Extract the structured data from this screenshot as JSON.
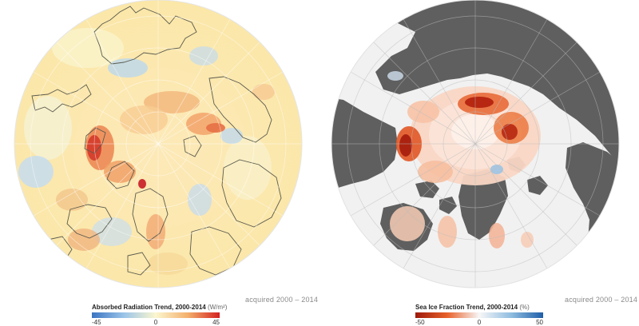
{
  "maps": [
    {
      "legend": {
        "title": "Absorbed Radiation Trend, 2000-2014",
        "unit": "(W/m²)",
        "min": "-45",
        "mid": "0",
        "max": "45",
        "colors": [
          "#3b74c2",
          "#9ac4e8",
          "#fbf7cf",
          "#f4b06c",
          "#d42020"
        ]
      },
      "acquired": "acquired 2000 – 2014"
    },
    {
      "legend": {
        "title": "Sea Ice Fraction Trend, 2000-2014",
        "unit": "(%)",
        "min": "-50",
        "mid": "0",
        "max": "50",
        "colors": [
          "#9e1a0b",
          "#e8612a",
          "#f7f7f7",
          "#8fbde0",
          "#1f5ea8"
        ]
      },
      "acquired": "acquired 2000 – 2014"
    }
  ]
}
